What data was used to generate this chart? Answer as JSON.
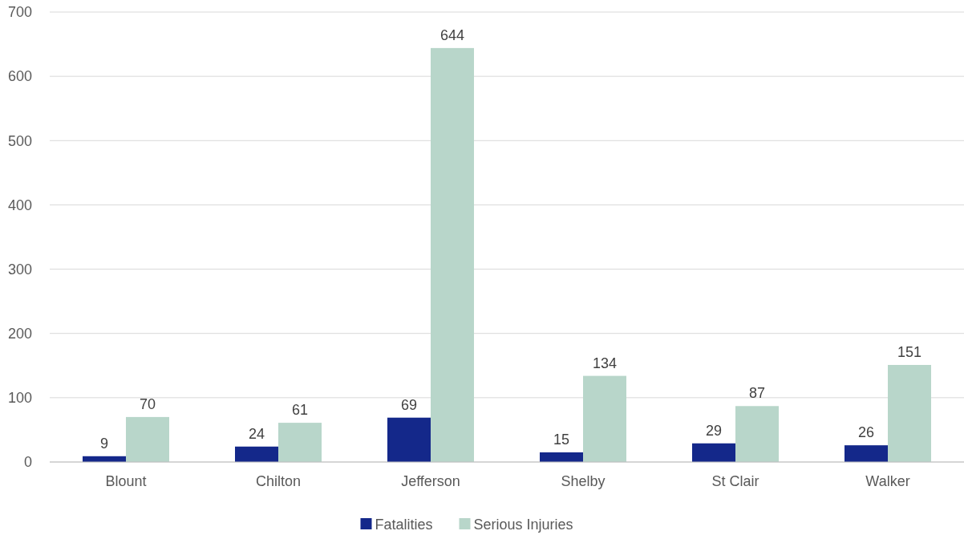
{
  "chart_data": {
    "type": "bar",
    "categories": [
      "Blount",
      "Chilton",
      "Jefferson",
      "Shelby",
      "St Clair",
      "Walker"
    ],
    "series": [
      {
        "name": "Fatalities",
        "color": "#14288a",
        "values": [
          9,
          24,
          69,
          15,
          29,
          26
        ]
      },
      {
        "name": "Serious Injuries",
        "color": "#b8d6ca",
        "values": [
          70,
          61,
          644,
          134,
          87,
          151
        ]
      }
    ],
    "ylim": [
      0,
      700
    ],
    "yticks": [
      0,
      100,
      200,
      300,
      400,
      500,
      600,
      700
    ],
    "grid": "y",
    "legend": "bottom",
    "data_labels": true
  }
}
